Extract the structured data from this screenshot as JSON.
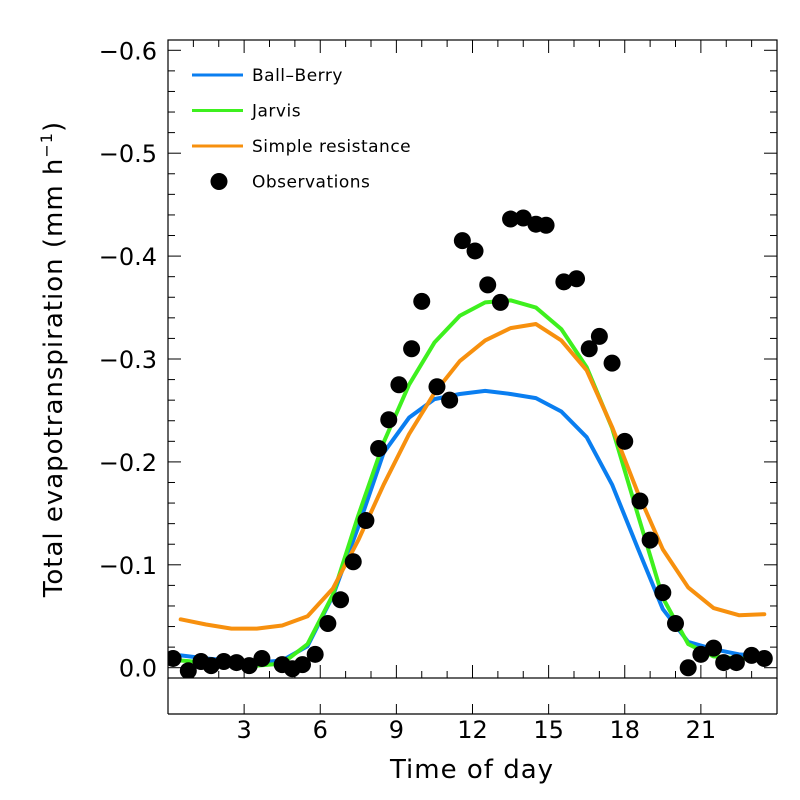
{
  "chart_data": {
    "type": "line",
    "xlabel": "Time of day",
    "ylabel_main": "Total evapotranspiration (mm h",
    "ylabel_sup": "−1",
    "ylabel_close": ")",
    "xlim": [
      0,
      24
    ],
    "ylim": [
      0.01,
      -0.61
    ],
    "y_axis_inverted": true,
    "xticks": [
      3,
      6,
      9,
      12,
      15,
      18,
      21
    ],
    "xtick_labels": [
      "3",
      "6",
      "9",
      "12",
      "15",
      "18",
      "21"
    ],
    "yticks": [
      0.0,
      -0.1,
      -0.2,
      -0.3,
      -0.4,
      -0.5,
      -0.6
    ],
    "ytick_labels": [
      "0.0",
      "−0.1",
      "−0.2",
      "−0.3",
      "−0.4",
      "−0.5",
      "−0.6"
    ],
    "legend_position": "top-left",
    "grid": false,
    "series": [
      {
        "name": "Ball–Berry",
        "kind": "line",
        "color": "#0a7ef0",
        "x": [
          0.5,
          1.5,
          2.5,
          3.5,
          4.5,
          5.5,
          6.5,
          7.5,
          8.5,
          9.5,
          10.5,
          11.5,
          12.5,
          13.5,
          14.5,
          15.5,
          16.5,
          17.5,
          18.5,
          19.5,
          20.5,
          21.5,
          22.5,
          23.5
        ],
        "y": [
          -0.012,
          -0.009,
          -0.007,
          -0.005,
          -0.007,
          -0.021,
          -0.07,
          -0.137,
          -0.209,
          -0.243,
          -0.261,
          -0.266,
          -0.269,
          -0.266,
          -0.262,
          -0.249,
          -0.224,
          -0.178,
          -0.117,
          -0.057,
          -0.025,
          -0.018,
          -0.013,
          -0.011
        ]
      },
      {
        "name": "Jarvis",
        "kind": "line",
        "color": "#3ef01e",
        "x": [
          0.5,
          1.5,
          2.5,
          3.5,
          4.5,
          5.5,
          6.5,
          7.5,
          8.5,
          9.5,
          10.5,
          11.5,
          12.5,
          13.5,
          14.5,
          15.5,
          16.5,
          17.5,
          18.5,
          19.5,
          20.5,
          21.5,
          22.5,
          23.5
        ],
        "y": [
          -0.007,
          -0.005,
          -0.003,
          -0.002,
          -0.004,
          -0.023,
          -0.071,
          -0.148,
          -0.219,
          -0.275,
          -0.316,
          -0.342,
          -0.355,
          -0.357,
          -0.35,
          -0.329,
          -0.292,
          -0.233,
          -0.15,
          -0.068,
          -0.023,
          -0.011,
          -0.009,
          -0.008
        ]
      },
      {
        "name": "Simple resistance",
        "kind": "line",
        "color": "#f7900e",
        "x": [
          0.5,
          1.5,
          2.5,
          3.5,
          4.5,
          5.5,
          6.5,
          7.5,
          8.5,
          9.5,
          10.5,
          11.5,
          12.5,
          13.5,
          14.5,
          15.5,
          16.5,
          17.5,
          18.5,
          19.5,
          20.5,
          21.5,
          22.5,
          23.5
        ],
        "y": [
          -0.047,
          -0.042,
          -0.038,
          -0.038,
          -0.041,
          -0.05,
          -0.077,
          -0.124,
          -0.178,
          -0.227,
          -0.267,
          -0.298,
          -0.318,
          -0.33,
          -0.334,
          -0.318,
          -0.289,
          -0.234,
          -0.171,
          -0.115,
          -0.078,
          -0.058,
          -0.051,
          -0.052
        ]
      },
      {
        "name": "Observations",
        "kind": "scatter",
        "color": "#000000",
        "x": [
          0.2,
          0.8,
          1.3,
          1.7,
          2.2,
          2.7,
          3.2,
          3.7,
          4.5,
          4.9,
          5.3,
          5.8,
          6.3,
          6.8,
          7.3,
          7.8,
          8.3,
          8.7,
          9.1,
          9.6,
          10.0,
          10.6,
          11.1,
          11.6,
          12.1,
          12.6,
          13.1,
          13.5,
          14.0,
          14.5,
          14.9,
          15.6,
          16.1,
          16.6,
          17.0,
          17.5,
          18.0,
          18.6,
          19.0,
          19.5,
          20.0,
          20.5,
          21.0,
          21.5,
          21.9,
          22.4,
          23.0,
          23.5
        ],
        "y": [
          -0.009,
          0.003,
          -0.006,
          -0.002,
          -0.006,
          -0.005,
          -0.002,
          -0.009,
          -0.003,
          0.001,
          -0.003,
          -0.013,
          -0.043,
          -0.066,
          -0.103,
          -0.143,
          -0.213,
          -0.241,
          -0.275,
          -0.31,
          -0.356,
          -0.273,
          -0.26,
          -0.415,
          -0.405,
          -0.372,
          -0.355,
          -0.436,
          -0.437,
          -0.431,
          -0.43,
          -0.375,
          -0.378,
          -0.31,
          -0.322,
          -0.296,
          -0.22,
          -0.162,
          -0.124,
          -0.073,
          -0.043,
          -0.0,
          -0.013,
          -0.019,
          -0.005,
          -0.005,
          -0.012,
          -0.009
        ]
      }
    ]
  }
}
